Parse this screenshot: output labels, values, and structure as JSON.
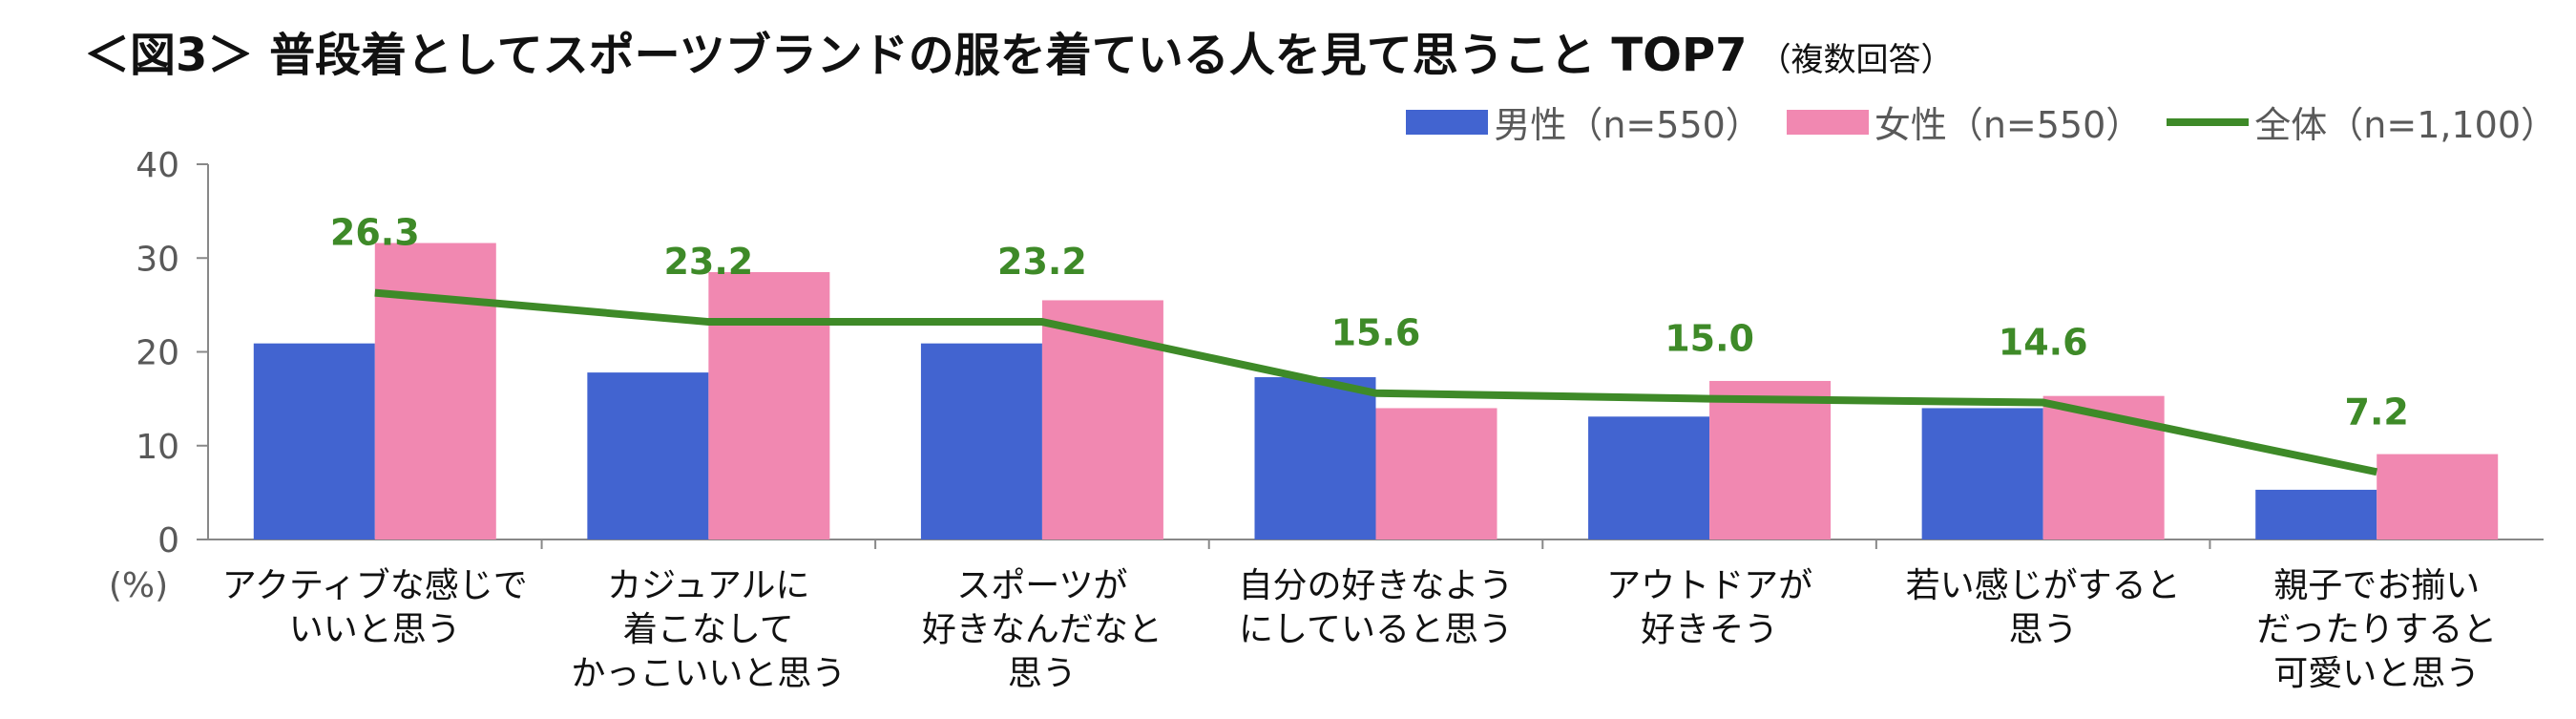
{
  "title": {
    "main": "＜図3＞ 普段着としてスポーツブランドの服を着ている人を見て思うこと TOP7",
    "sub": "（複数回答）"
  },
  "chart_data": {
    "type": "bar",
    "categories": [
      [
        "アクティブな感じで",
        "いいと思う"
      ],
      [
        "カジュアルに",
        "着こなして",
        "かっこいいと思う"
      ],
      [
        "スポーツが",
        "好きなんだなと",
        "思う"
      ],
      [
        "自分の好きなよう",
        "にしていると思う"
      ],
      [
        "アウトドアが",
        "好きそう"
      ],
      [
        "若い感じがすると",
        "思う"
      ],
      [
        "親子でお揃い",
        "だったりすると",
        "可愛いと思う"
      ]
    ],
    "series": [
      {
        "name": "男性（n=550）",
        "kind": "bar",
        "color": "#4264d0",
        "values": [
          20.9,
          17.8,
          20.9,
          17.3,
          13.1,
          14.0,
          5.3
        ]
      },
      {
        "name": "女性（n=550）",
        "kind": "bar",
        "color": "#f188b1",
        "values": [
          31.6,
          28.5,
          25.5,
          14.0,
          16.9,
          15.3,
          9.1
        ]
      },
      {
        "name": "全体（n=1,100）",
        "kind": "line",
        "color": "#3e8a28",
        "values": [
          26.3,
          23.2,
          23.2,
          15.6,
          15.0,
          14.6,
          7.2
        ],
        "labels": [
          "26.3",
          "23.2",
          "23.2",
          "15.6",
          "15.0",
          "14.6",
          "7.2"
        ]
      }
    ],
    "ylim": [
      0,
      40
    ],
    "yticks": [
      "0",
      "10",
      "20",
      "30",
      "40"
    ],
    "yunit": "(%)",
    "grid": false,
    "legend": "top-right"
  }
}
